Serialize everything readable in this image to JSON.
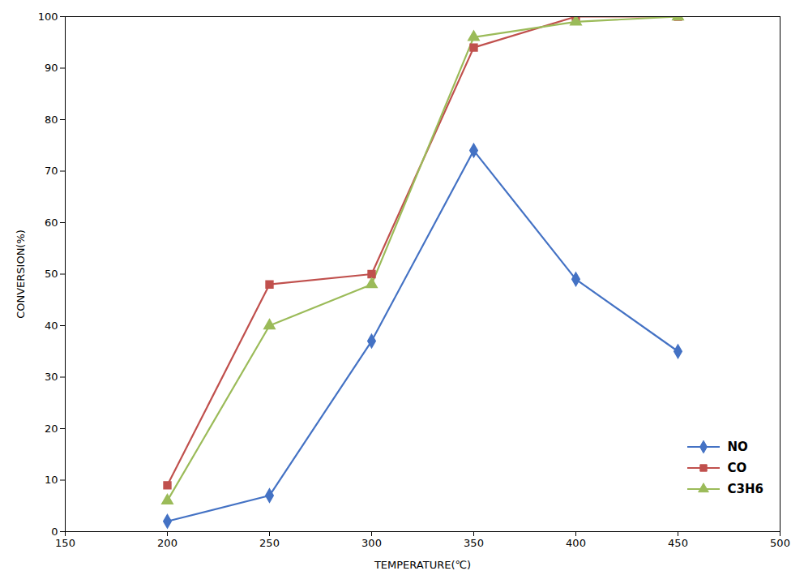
{
  "chart_data": {
    "type": "line",
    "xlabel": "TEMPERATURE(℃)",
    "ylabel": "CONVERSION(%)",
    "x": [
      200,
      250,
      300,
      350,
      400,
      450
    ],
    "series": [
      {
        "name": "NO",
        "color": "#4472C4",
        "marker": "diamond",
        "values": [
          2,
          7,
          37,
          74,
          49,
          35
        ]
      },
      {
        "name": "CO",
        "color": "#C0504D",
        "marker": "square",
        "values": [
          9,
          48,
          50,
          94,
          100,
          100
        ]
      },
      {
        "name": "C3H6",
        "color": "#9BBB59",
        "marker": "triangle",
        "values": [
          6,
          40,
          48,
          96,
          99,
          100
        ]
      }
    ],
    "xlim": [
      150,
      500
    ],
    "ylim": [
      0,
      100
    ],
    "xticks": [
      150,
      200,
      250,
      300,
      350,
      400,
      450,
      500
    ],
    "yticks": [
      0,
      10,
      20,
      30,
      40,
      50,
      60,
      70,
      80,
      90,
      100
    ],
    "grid": false,
    "legend": "lower right"
  }
}
